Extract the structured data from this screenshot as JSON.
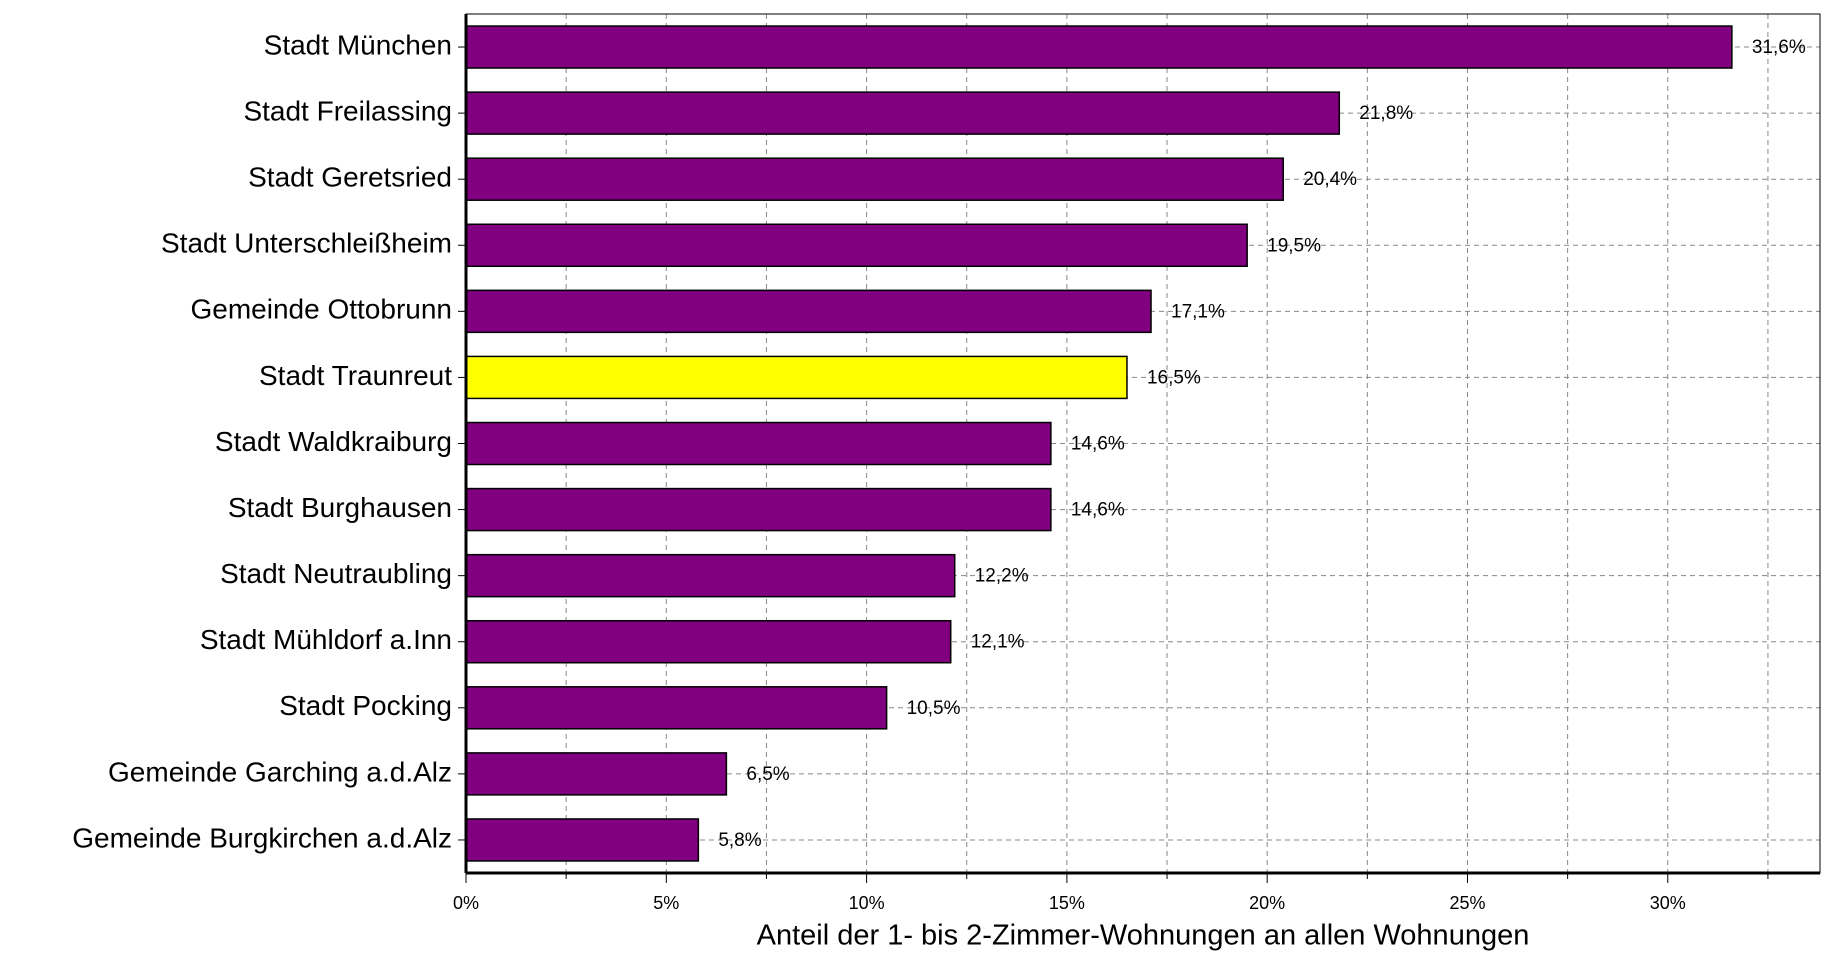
{
  "chart_data": {
    "type": "bar",
    "orientation": "horizontal",
    "x_label": "Anteil der 1- bis 2-Zimmer-Wohnungen an allen Wohnungen",
    "categories": [
      "Stadt München",
      "Stadt Freilassing",
      "Stadt Geretsried",
      "Stadt Unterschleißheim",
      "Gemeinde Ottobrunn",
      "Stadt Traunreut",
      "Stadt Waldkraiburg",
      "Stadt Burghausen",
      "Stadt Neutraubling",
      "Stadt Mühldorf a.Inn",
      "Stadt Pocking",
      "Gemeinde Garching a.d.Alz",
      "Gemeinde Burgkirchen a.d.Alz"
    ],
    "values": [
      31.6,
      21.8,
      20.4,
      19.5,
      17.1,
      16.5,
      14.6,
      14.6,
      12.2,
      12.1,
      10.5,
      6.5,
      5.8
    ],
    "value_labels": [
      "31,6%",
      "21,8%",
      "20,4%",
      "19,5%",
      "17,1%",
      "16,5%",
      "14,6%",
      "14,6%",
      "12,2%",
      "12,1%",
      "10,5%",
      "6,5%",
      "5,8%"
    ],
    "colors": [
      "#800080",
      "#800080",
      "#800080",
      "#800080",
      "#800080",
      "#ffff00",
      "#800080",
      "#800080",
      "#800080",
      "#800080",
      "#800080",
      "#800080",
      "#800080"
    ],
    "xlim": [
      0,
      33.8
    ],
    "xticks": [
      {
        "value": 0,
        "label": "0%"
      },
      {
        "value": 5,
        "label": "5%"
      },
      {
        "value": 10,
        "label": "10%"
      },
      {
        "value": 15,
        "label": "15%"
      },
      {
        "value": 20,
        "label": "20%"
      },
      {
        "value": 25,
        "label": "25%"
      },
      {
        "value": 30,
        "label": "30%"
      }
    ],
    "xminorticks": [
      2.5,
      7.5,
      12.5,
      17.5,
      22.5,
      27.5,
      32.5
    ],
    "grid": true
  }
}
